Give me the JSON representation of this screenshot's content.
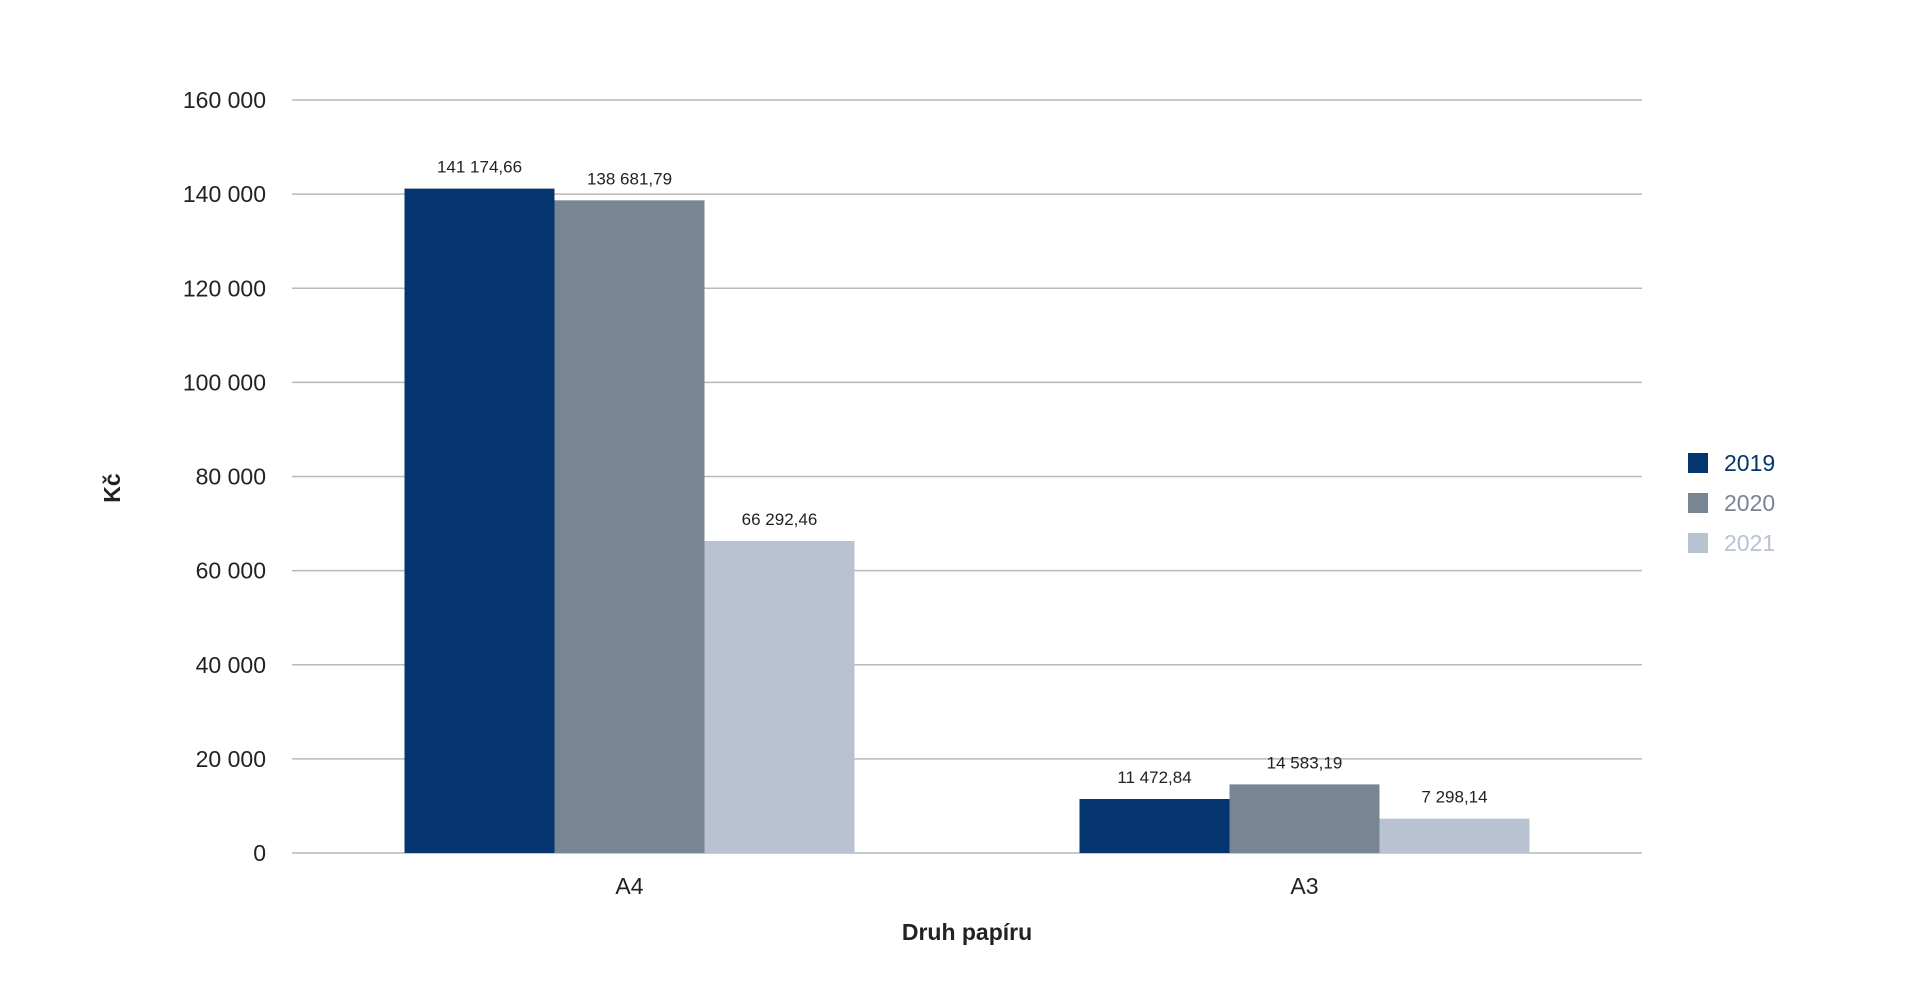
{
  "chart_data": {
    "type": "bar",
    "categories": [
      "A4",
      "A3"
    ],
    "series": [
      {
        "name": "2019",
        "values": [
          141174.66,
          11472.84
        ],
        "labels": [
          "141 174,66",
          "11 472,84"
        ],
        "color": "#04356e"
      },
      {
        "name": "2020",
        "values": [
          138681.79,
          14583.19
        ],
        "labels": [
          "138 681,79",
          "14 583,19"
        ],
        "color": "#788593"
      },
      {
        "name": "2021",
        "values": [
          66292.46,
          7298.14
        ],
        "labels": [
          "66 292,46",
          "7 298,14"
        ],
        "color": "#b9c2d0"
      }
    ],
    "xlabel": "Druh papíru",
    "ylabel": "Kč",
    "ylim": [
      0,
      160000
    ],
    "yticks": [
      0,
      20000,
      40000,
      60000,
      80000,
      100000,
      120000,
      140000,
      160000
    ],
    "ytick_labels": [
      "0",
      "20 000",
      "40 000",
      "60 000",
      "80 000",
      "100 000",
      "120 000",
      "140 000",
      "160 000"
    ],
    "grid": true,
    "legend_position": "right",
    "gridline_color": "#b7b9bc"
  }
}
